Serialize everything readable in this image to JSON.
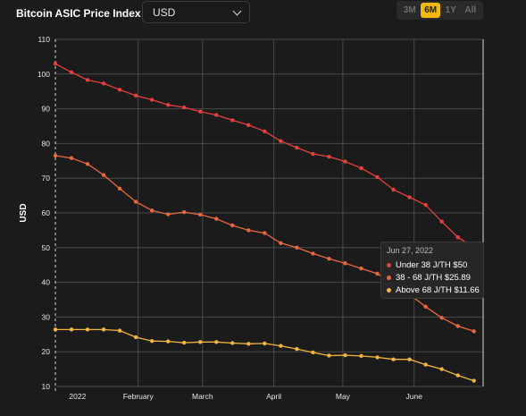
{
  "header": {
    "title": "Bitcoin ASIC Price Index",
    "currency_select": "USD",
    "ranges": [
      "3M",
      "6M",
      "1Y",
      "All"
    ],
    "active_range": "6M"
  },
  "tooltip": {
    "date": "Jun 27, 2022",
    "rows": [
      "Under 38 J/TH $50",
      "38 - 68 J/TH $25.89",
      "Above 68 J/TH $11.66"
    ]
  },
  "colors": {
    "under38": "#e8403d",
    "mid": "#e8683d",
    "above68": "#f3b53c",
    "grid": "#4a4a4a"
  },
  "chart_data": {
    "type": "line",
    "ylabel": "USD",
    "ylim": [
      10,
      110
    ],
    "yticks": [
      10,
      20,
      30,
      40,
      50,
      60,
      70,
      80,
      90,
      100,
      110
    ],
    "xticks": [
      {
        "label": "2022",
        "x": "2022-01-01"
      },
      {
        "label": "February",
        "x": "2022-02-01"
      },
      {
        "label": "March",
        "x": "2022-03-01"
      },
      {
        "label": "April",
        "x": "2022-04-01"
      },
      {
        "label": "May",
        "x": "2022-05-01"
      },
      {
        "label": "June",
        "x": "2022-06-01"
      }
    ],
    "xlim": [
      "2021-12-27",
      "2022-07-01"
    ],
    "x": [
      "2021-12-27",
      "2022-01-03",
      "2022-01-10",
      "2022-01-17",
      "2022-01-24",
      "2022-01-31",
      "2022-02-07",
      "2022-02-14",
      "2022-02-21",
      "2022-02-28",
      "2022-03-07",
      "2022-03-14",
      "2022-03-21",
      "2022-03-28",
      "2022-04-04",
      "2022-04-11",
      "2022-04-18",
      "2022-04-25",
      "2022-05-02",
      "2022-05-09",
      "2022-05-16",
      "2022-05-23",
      "2022-05-30",
      "2022-06-06",
      "2022-06-13",
      "2022-06-20",
      "2022-06-27"
    ],
    "series": [
      {
        "name": "Under 38 J/TH",
        "color": "#e8403d",
        "values": [
          103,
          100.5,
          98.3,
          97.3,
          95.5,
          93.8,
          92.6,
          91.1,
          90.4,
          89.2,
          88.2,
          86.7,
          85.3,
          83.5,
          80.7,
          78.8,
          77,
          76.2,
          74.8,
          72.9,
          70.3,
          66.7,
          64.5,
          62.3,
          57.5,
          53,
          50
        ]
      },
      {
        "name": "38 - 68 J/TH",
        "color": "#e8683d",
        "values": [
          76.5,
          75.8,
          74.1,
          70.9,
          67,
          63.2,
          60.7,
          59.6,
          60.2,
          59.5,
          58.3,
          56.4,
          55,
          54.2,
          51.3,
          50,
          48.3,
          46.8,
          45.5,
          44,
          42.5,
          39.5,
          36.5,
          33,
          29.8,
          27.4,
          25.89
        ]
      },
      {
        "name": "Above 68 J/TH",
        "color": "#f3b53c",
        "values": [
          26.4,
          26.4,
          26.4,
          26.4,
          26.1,
          24.2,
          23.1,
          23,
          22.6,
          22.8,
          22.8,
          22.5,
          22.3,
          22.4,
          21.7,
          20.8,
          19.8,
          18.9,
          19,
          18.8,
          18.4,
          17.8,
          17.8,
          16.3,
          15,
          13.2,
          11.66
        ]
      }
    ]
  }
}
